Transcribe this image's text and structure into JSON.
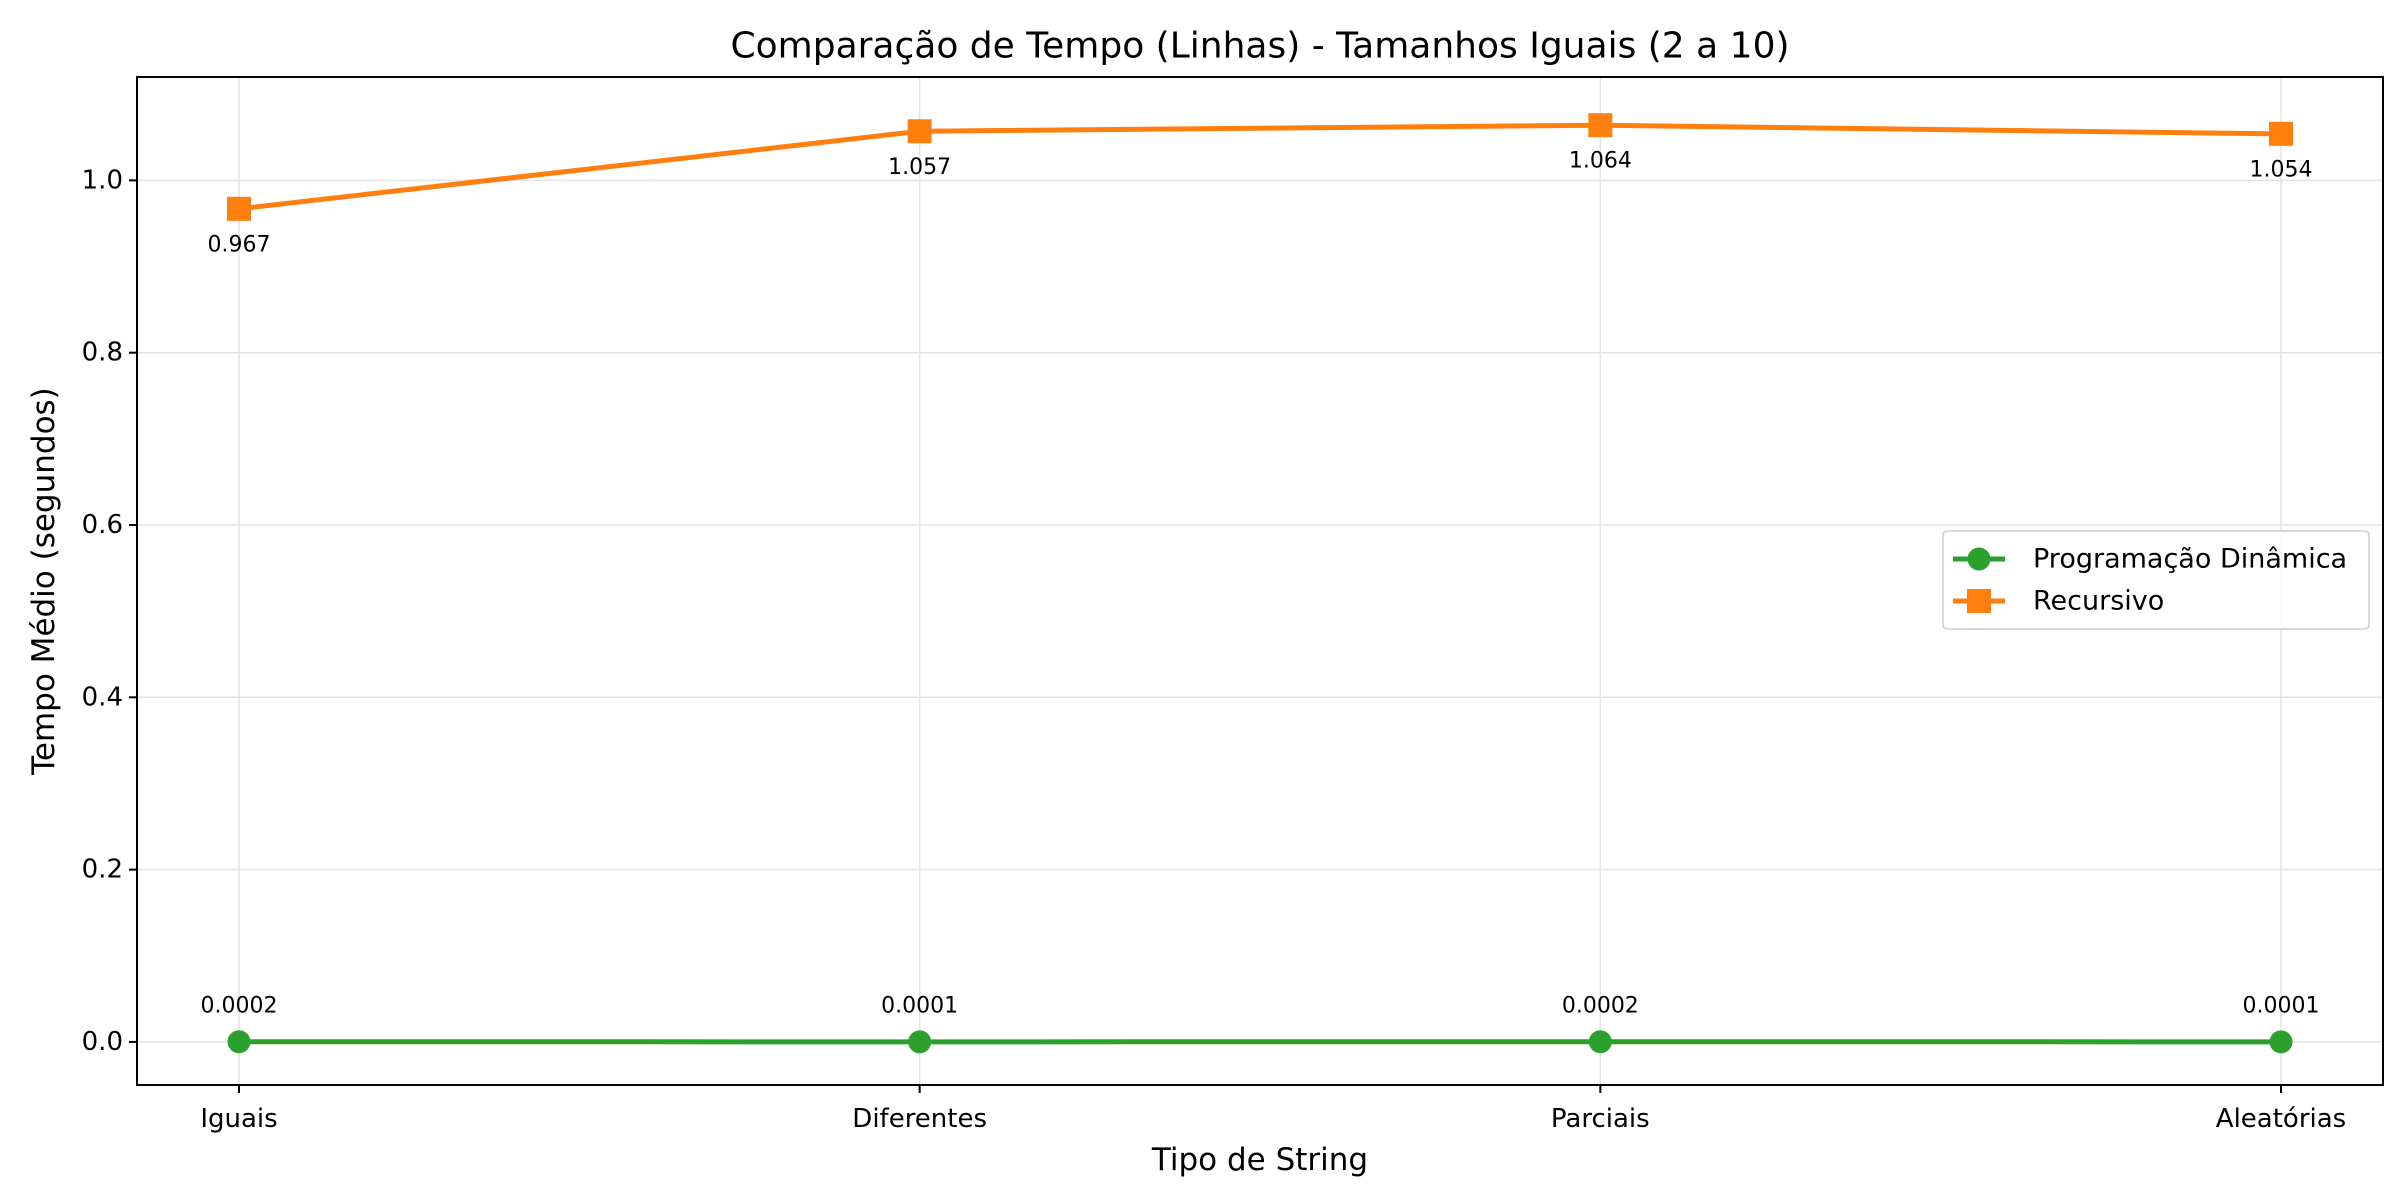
{
  "chart_data": {
    "type": "line",
    "title": "Comparação de Tempo (Linhas) - Tamanhos Iguais (2 a 10)",
    "xlabel": "Tipo de String",
    "ylabel": "Tempo Médio (segundos)",
    "categories": [
      "Iguais",
      "Diferentes",
      "Parciais",
      "Aleatórias"
    ],
    "ylim": [
      -0.05,
      1.12
    ],
    "yticks": [
      0.0,
      0.2,
      0.4,
      0.6,
      0.8,
      1.0
    ],
    "ytick_labels": [
      "0.0",
      "0.2",
      "0.4",
      "0.6",
      "0.8",
      "1.0"
    ],
    "grid": true,
    "legend_position": "center-right",
    "series": [
      {
        "name": "Programação Dinâmica",
        "color": "#2ca02c",
        "marker": "circle",
        "values": [
          0.0002,
          0.0001,
          0.0002,
          0.0001
        ],
        "labels": [
          "0.0002",
          "0.0001",
          "0.0002",
          "0.0001"
        ],
        "label_position": "above"
      },
      {
        "name": "Recursivo",
        "color": "#ff7f0e",
        "marker": "square",
        "values": [
          0.967,
          1.057,
          1.064,
          1.054
        ],
        "labels": [
          "0.967",
          "1.057",
          "1.064",
          "1.054"
        ],
        "label_position": "below"
      }
    ]
  }
}
